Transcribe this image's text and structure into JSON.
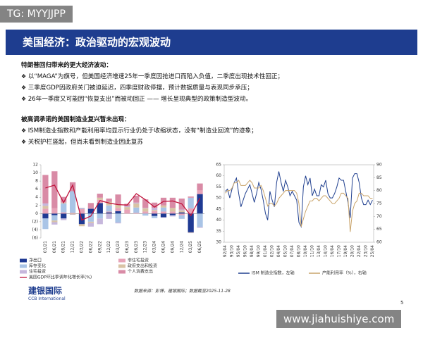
{
  "watermark_top": "TG: MYYJJPP",
  "header": {
    "title": "美国经济：政治驱动的宏观波动"
  },
  "sections": [
    {
      "heading": "特朗普回归带来的更大经济波动：",
      "bullets": [
        "以“MAGA”为旗号，但美国经济增速25年一季度因抢进口而陷入负值，二季度出现技术性回正；",
        "三季度GDP因政府关门被迫延迟，四季度财政停摆，预计数据质量与表现同步承压；",
        "26年一季度又可能因“恢复支出”而被动回正 —— 增长呈现典型的政策制造型波动。"
      ]
    },
    {
      "heading": "被高调承诺的美国制造业复兴暂未出现：",
      "bullets": [
        "ISM制造业指数和产能利用率均显示行业仍处于收缩状态，没有“制造业回流”的迹象；",
        "关税护栏竖起，但尚未看到制造业因此复苏"
      ]
    }
  ],
  "chart_data": [
    {
      "type": "bar",
      "stacked": true,
      "categories": [
        "03/21",
        "06/21",
        "09/21",
        "12/21",
        "03/22",
        "06/22",
        "09/22",
        "12/22",
        "03/23",
        "06/23",
        "09/23",
        "12/23",
        "03/24",
        "06/24",
        "09/24",
        "12/24",
        "03/25",
        "06/25"
      ],
      "ylim": [
        -6,
        12
      ],
      "yticks": [
        12,
        10,
        8,
        6,
        4,
        2,
        0,
        {
          "value": -2,
          "label": "(2)"
        },
        {
          "value": -4,
          "label": "(4)"
        },
        {
          "value": -6,
          "label": "(6)"
        }
      ],
      "series": [
        {
          "name": "净出口",
          "color": "#1f3a93",
          "values": [
            -1.2,
            -0.4,
            -1.2,
            0,
            -2.6,
            1.2,
            2.6,
            0.3,
            0.6,
            0,
            0,
            0,
            -0.6,
            -0.9,
            -0.4,
            0.3,
            -4.6,
            4.8
          ]
        },
        {
          "name": "非住宅投资",
          "color": "#e7a3b8",
          "values": [
            1.2,
            1.3,
            0.3,
            0.2,
            1.1,
            0.1,
            0.8,
            0.2,
            0.8,
            1.0,
            0.2,
            0.5,
            0.6,
            0.5,
            0.5,
            -0.4,
            1.3,
            0.9
          ]
        },
        {
          "name": "库存变化",
          "color": "#a9c4e6",
          "values": [
            -2.6,
            -1.3,
            2.2,
            5.3,
            0.2,
            -2.0,
            -1.2,
            1.5,
            -2.2,
            0,
            1.3,
            -0.5,
            -0.5,
            1.0,
            -0.1,
            -0.9,
            2.6,
            -3.3
          ]
        },
        {
          "name": "政府支出和投资",
          "color": "#d9c3a5",
          "values": [
            0.7,
            -0.4,
            0.2,
            -0.2,
            -0.5,
            -0.3,
            0.5,
            0.9,
            0.8,
            0.6,
            1.0,
            0.8,
            0.3,
            0.5,
            0.9,
            0.5,
            -0.1,
            0.0
          ]
        },
        {
          "name": "住宅投资",
          "color": "#c6b7dc",
          "values": [
            0.6,
            -0.6,
            -0.4,
            -0.1,
            0,
            -0.9,
            -1.4,
            -1.3,
            -0.2,
            0.2,
            0.2,
            0.1,
            0.5,
            -0.1,
            -0.2,
            0.2,
            -0.1,
            -0.2
          ]
        },
        {
          "name": "个人消费支出",
          "color": "#d98ba6",
          "values": [
            7.0,
            9.1,
            1.4,
            2.2,
            0.1,
            1.3,
            1.0,
            0.8,
            2.5,
            0.6,
            1.7,
            2.1,
            1.3,
            1.9,
            2.5,
            2.7,
            0.3,
            1.7
          ]
        },
        {
          "name": "美国GDP环比季调年化增长率(%)",
          "type": "line",
          "color": "#c0143c",
          "values": [
            6.3,
            7.0,
            2.7,
            7.0,
            -1.6,
            -0.6,
            3.2,
            2.6,
            2.2,
            2.1,
            4.9,
            3.4,
            1.6,
            3.0,
            3.1,
            2.4,
            -0.5,
            3.8
          ]
        }
      ]
    },
    {
      "type": "line",
      "categories": [
        "92/04",
        null,
        null,
        "93/10",
        null,
        null,
        "95/04",
        null,
        null,
        "96/10",
        null,
        null,
        "98/04",
        null,
        null,
        "99/10",
        null,
        null,
        "01/04",
        null,
        null,
        "02/10",
        null,
        null,
        "04/04",
        null,
        null,
        "05/10",
        null,
        null,
        "07/04",
        null,
        null,
        "08/10",
        null,
        null,
        "10/04",
        null,
        null,
        "11/10",
        null,
        null,
        "13/04",
        null,
        null,
        "14/10",
        null,
        null,
        "16/04",
        null,
        null,
        "17/10",
        null,
        null,
        "19/04",
        null,
        null,
        "20/10",
        null,
        null,
        "22/04",
        null,
        null,
        "23/10",
        null,
        null,
        "25/04"
      ],
      "ylim": [
        30,
        65
      ],
      "yticks": [
        30,
        35,
        40,
        45,
        50,
        55,
        60,
        65
      ],
      "y2lim": [
        60,
        90
      ],
      "y2ticks": [
        60,
        65,
        70,
        75,
        80,
        85,
        90
      ],
      "series": [
        {
          "name": "ISM 制造业指数，左轴",
          "color": "#1f3f8f",
          "values": [
            53,
            54,
            50,
            54,
            57,
            59,
            52,
            46,
            49,
            52,
            54,
            56,
            52,
            48,
            52,
            57,
            54,
            49,
            43,
            40,
            53,
            49,
            46,
            57,
            62,
            57,
            53,
            58,
            55,
            51,
            53,
            51,
            49,
            39,
            37,
            55,
            60,
            56,
            59,
            51,
            54,
            51,
            51,
            56,
            55,
            58,
            52,
            50,
            50,
            52,
            55,
            59,
            58,
            58,
            53,
            48,
            41,
            59,
            61,
            61,
            57,
            50,
            47,
            47,
            49,
            47,
            49
          ]
        },
        {
          "name": "产能利用率（%），右轴",
          "axis": "y2",
          "color": "#c9a46b",
          "values": [
            79,
            80,
            80,
            81,
            83,
            83,
            84,
            82,
            82,
            82,
            83,
            84,
            83,
            81,
            81,
            81,
            82,
            80,
            77,
            74,
            75,
            75,
            74,
            75,
            77,
            78,
            79,
            80,
            80,
            80,
            80,
            80,
            79,
            75,
            66,
            69,
            72,
            74,
            76,
            76,
            77,
            77,
            76,
            77,
            78,
            78,
            77,
            76,
            75,
            75,
            76,
            77,
            79,
            79,
            78,
            77,
            64,
            72,
            75,
            76,
            79,
            79,
            78,
            78,
            78,
            77,
            77
          ]
        }
      ]
    }
  ],
  "footer": {
    "logo_cn": "建银国际",
    "logo_en": "CCB International",
    "source": "数据来源：彭博，建银国际；数据截至2025-11-28",
    "page": "5",
    "watermark": "www.jiahuishiye.com"
  }
}
